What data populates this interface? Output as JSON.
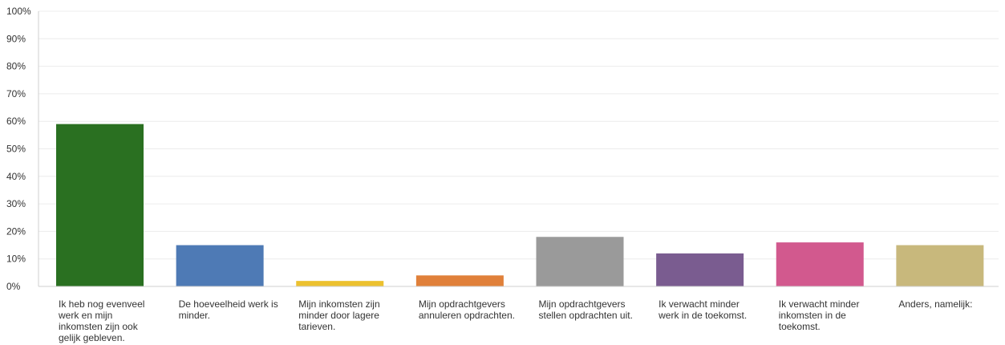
{
  "chart_data": {
    "type": "bar",
    "categories": [
      "Ik heb nog evenveel werk en mijn inkomsten zijn ook gelijk gebleven.",
      "De hoeveelheid werk is minder.",
      "Mijn inkomsten zijn minder door lagere tarieven.",
      "Mijn opdrachtgevers annuleren opdrachten.",
      "Mijn opdrachtgevers stellen opdrachten uit.",
      "Ik verwacht minder werk in de toekomst.",
      "Ik verwacht minder inkomsten in de toekomst.",
      "Anders, namelijk:"
    ],
    "values": [
      59,
      15,
      2,
      4,
      18,
      12,
      16,
      15
    ],
    "colors": [
      "#2a7021",
      "#4e7ab5",
      "#ecc12f",
      "#e0803a",
      "#9a9a9a",
      "#7a5c90",
      "#d2598e",
      "#c8b87c"
    ],
    "ylim": [
      0,
      100
    ],
    "yticks": [
      "0%",
      "10%",
      "20%",
      "30%",
      "40%",
      "50%",
      "60%",
      "70%",
      "80%",
      "90%",
      "100%"
    ],
    "title": "",
    "xlabel": "",
    "ylabel": "",
    "grid": true,
    "legend": "none"
  }
}
